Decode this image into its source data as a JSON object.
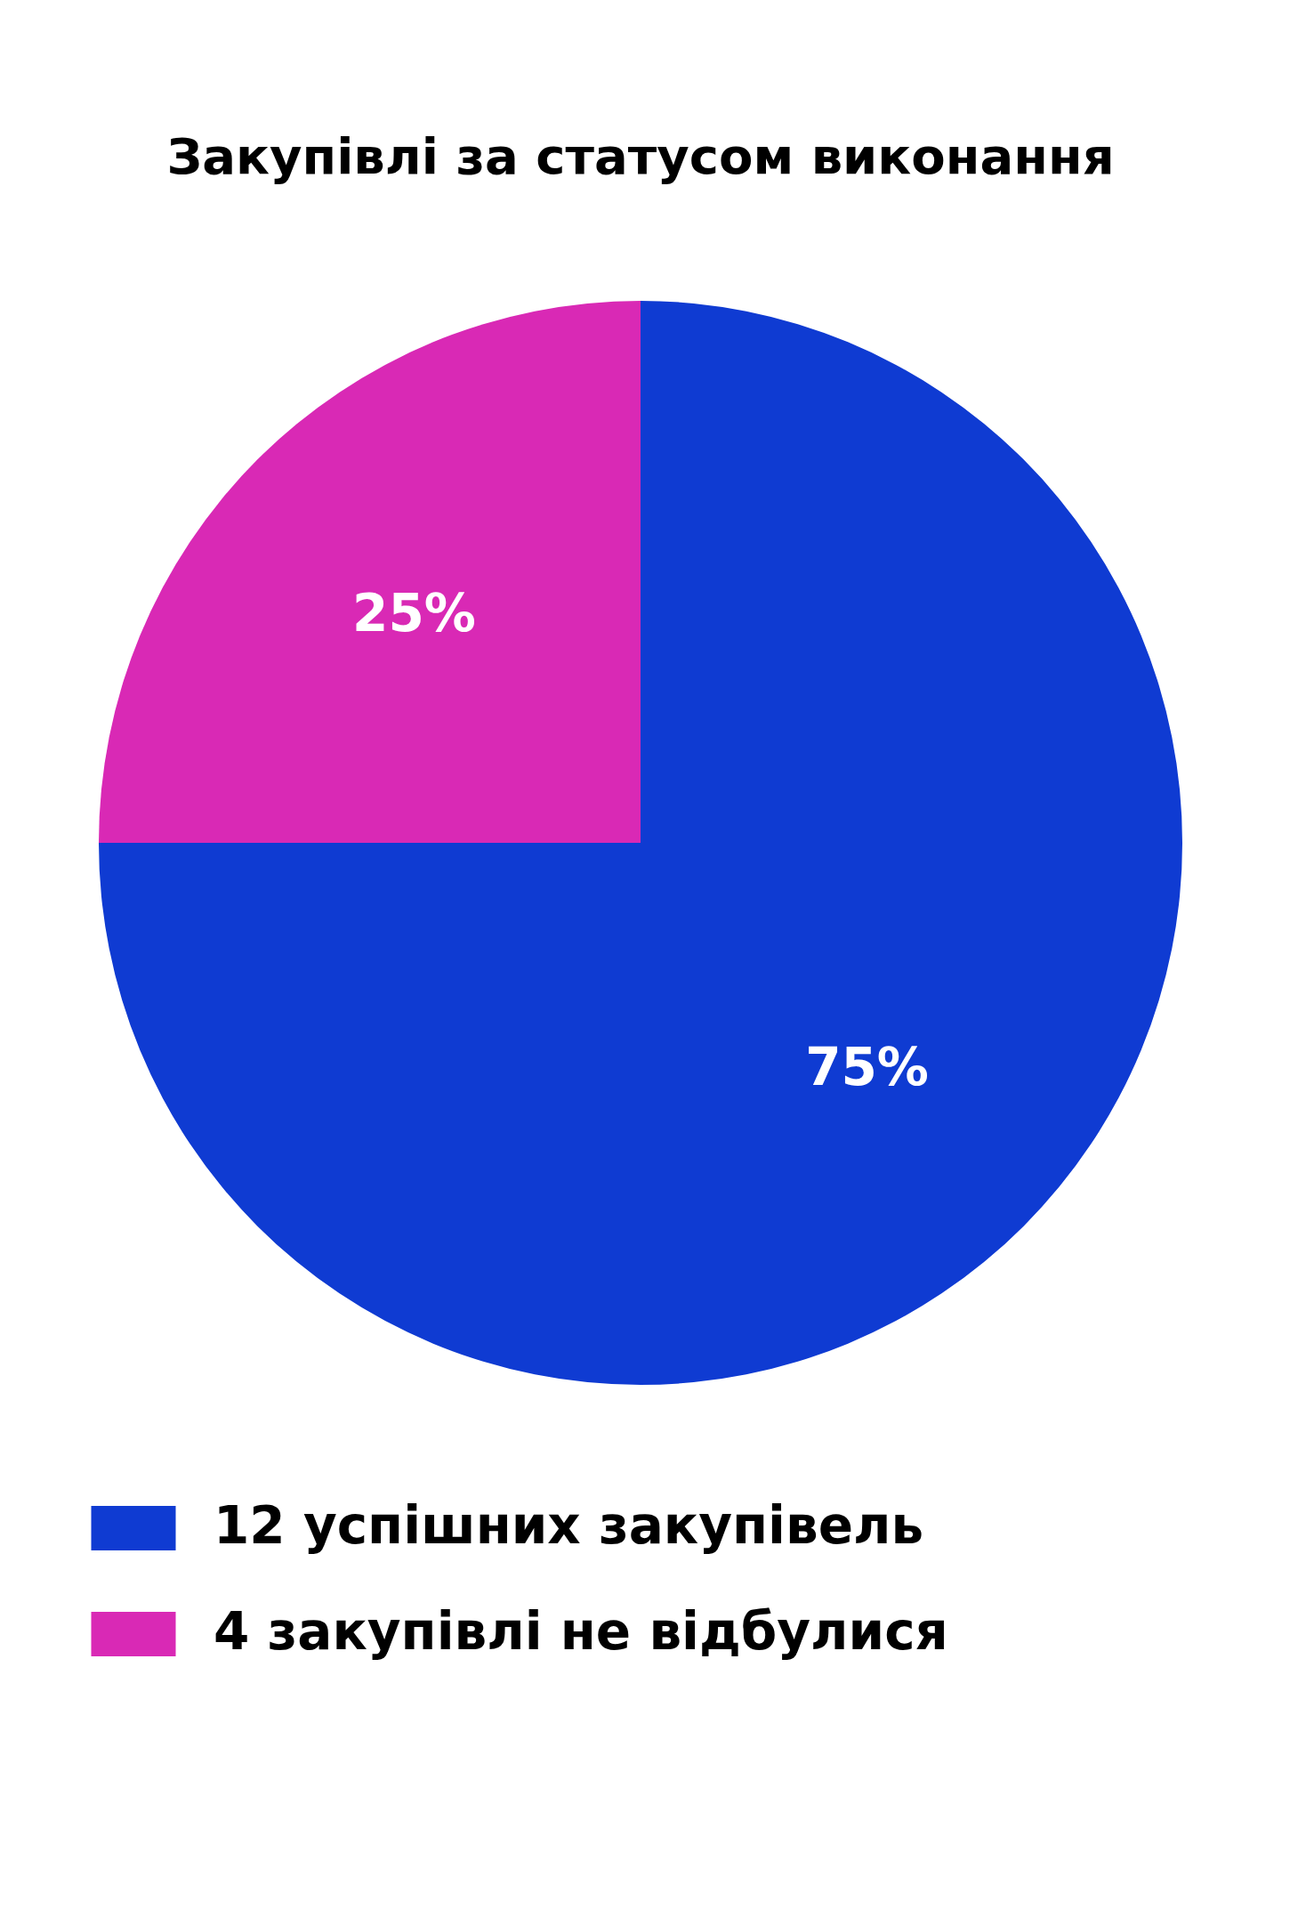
{
  "chart_data": {
    "type": "pie",
    "title": "Закупівлі за статусом виконання",
    "categories": [
      "12 успішних закупівель",
      "4 закупівлі не відбулися"
    ],
    "values": [
      75,
      25
    ],
    "colors": [
      "#0f3bd2",
      "#d929b5"
    ],
    "value_labels": [
      "75%",
      "25%"
    ],
    "legend": "bottom"
  }
}
